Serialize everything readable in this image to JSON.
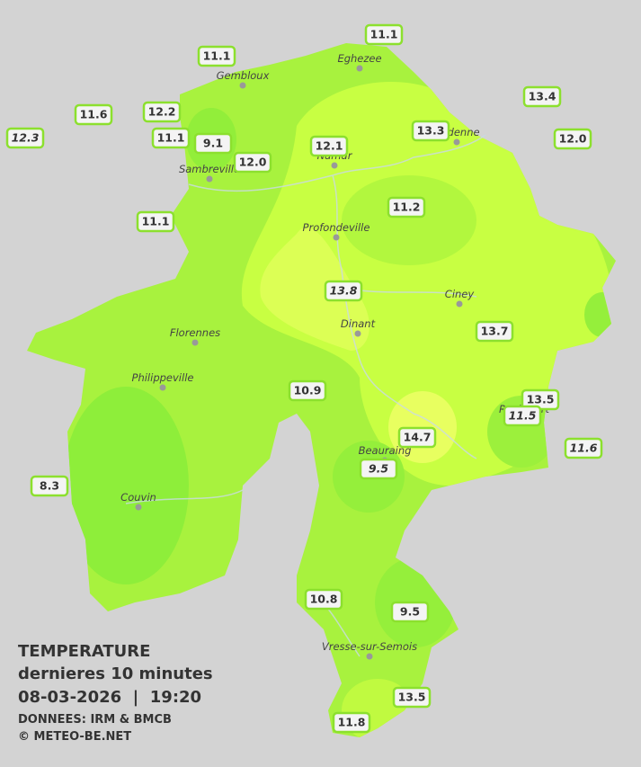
{
  "title": "TEMPERATURE",
  "subtitle": "dernieres 10 minutes",
  "datetime": "08-03-2026  |  19:20",
  "source": "DONNEES: IRM & BMCB",
  "copyright": "© METEO-BE.NET",
  "towns": [
    "Eghezee",
    "Gembloux",
    "Andenne",
    "Namur",
    "Sambreville",
    "Profondeville",
    "Ciney",
    "Dinant",
    "Florennes",
    "Philippeville",
    "Rochefort",
    "Beauraing",
    "Couvin",
    "Vresse-sur-Semois"
  ],
  "stations": [
    {
      "value": "11.1",
      "italic": false
    },
    {
      "value": "11.1",
      "italic": false
    },
    {
      "value": "13.4",
      "italic": false
    },
    {
      "value": "11.6",
      "italic": false
    },
    {
      "value": "12.2",
      "italic": false
    },
    {
      "value": "12.3",
      "italic": true
    },
    {
      "value": "11.1",
      "italic": false
    },
    {
      "value": "9.1",
      "italic": false
    },
    {
      "value": "12.1",
      "italic": false
    },
    {
      "value": "13.3",
      "italic": false
    },
    {
      "value": "12.0",
      "italic": false
    },
    {
      "value": "12.0",
      "italic": false
    },
    {
      "value": "11.2",
      "italic": false
    },
    {
      "value": "11.1",
      "italic": false
    },
    {
      "value": "13.8",
      "italic": true
    },
    {
      "value": "13.7",
      "italic": false
    },
    {
      "value": "10.9",
      "italic": false
    },
    {
      "value": "13.5",
      "italic": false
    },
    {
      "value": "11.5",
      "italic": true
    },
    {
      "value": "14.7",
      "italic": false
    },
    {
      "value": "11.6",
      "italic": true
    },
    {
      "value": "8.3",
      "italic": false
    },
    {
      "value": "9.5",
      "italic": true
    },
    {
      "value": "10.8",
      "italic": false
    },
    {
      "value": "9.5",
      "italic": false
    },
    {
      "value": "13.5",
      "italic": false
    },
    {
      "value": "11.8",
      "italic": false
    }
  ]
}
